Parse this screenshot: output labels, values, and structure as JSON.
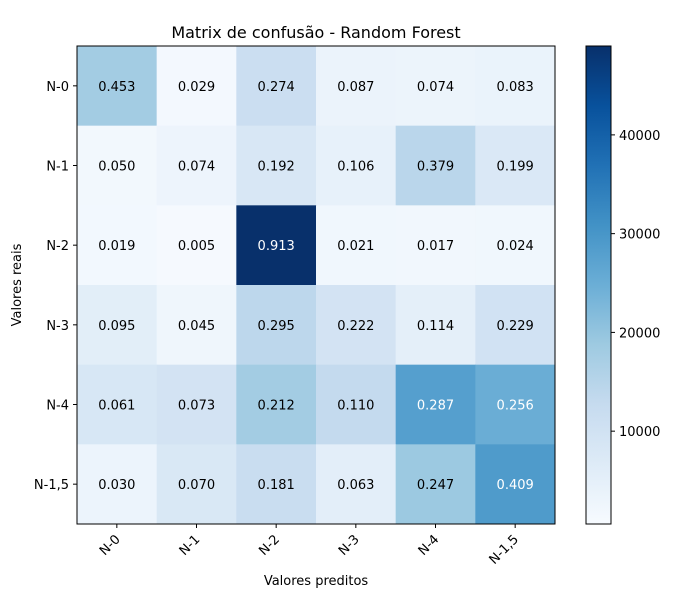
{
  "chart_data": {
    "type": "heatmap",
    "title": "Matrix de confusão - Random Forest",
    "xlabel": "Valores preditos",
    "ylabel": "Valores reais",
    "x_categories": [
      "N-0",
      "N-1",
      "N-2",
      "N-3",
      "N-4",
      "N-1,5"
    ],
    "y_categories": [
      "N-0",
      "N-1",
      "N-2",
      "N-3",
      "N-4",
      "N-1,5"
    ],
    "cell_labels": [
      [
        "0.453",
        "0.029",
        "0.274",
        "0.087",
        "0.074",
        "0.083"
      ],
      [
        "0.050",
        "0.074",
        "0.192",
        "0.106",
        "0.379",
        "0.199"
      ],
      [
        "0.019",
        "0.005",
        "0.913",
        "0.021",
        "0.017",
        "0.024"
      ],
      [
        "0.095",
        "0.045",
        "0.295",
        "0.222",
        "0.114",
        "0.229"
      ],
      [
        "0.061",
        "0.073",
        "0.212",
        "0.110",
        "0.287",
        "0.256"
      ],
      [
        "0.030",
        "0.070",
        "0.181",
        "0.063",
        "0.247",
        "0.409"
      ]
    ],
    "color_values": [
      [
        18000,
        1600,
        11500,
        3600,
        3300,
        3700
      ],
      [
        1900,
        3100,
        8100,
        4500,
        14500,
        7700
      ],
      [
        1700,
        1200,
        49000,
        2200,
        2000,
        2300
      ],
      [
        5600,
        2600,
        14000,
        9500,
        5200,
        10000
      ],
      [
        8300,
        9500,
        18000,
        13000,
        28000,
        25000
      ],
      [
        3200,
        7800,
        12000,
        5400,
        19000,
        29000
      ]
    ],
    "colorbar": {
      "colormap": "Blues",
      "range": [
        600,
        49000
      ],
      "ticks": [
        10000,
        20000,
        30000,
        40000
      ]
    }
  }
}
